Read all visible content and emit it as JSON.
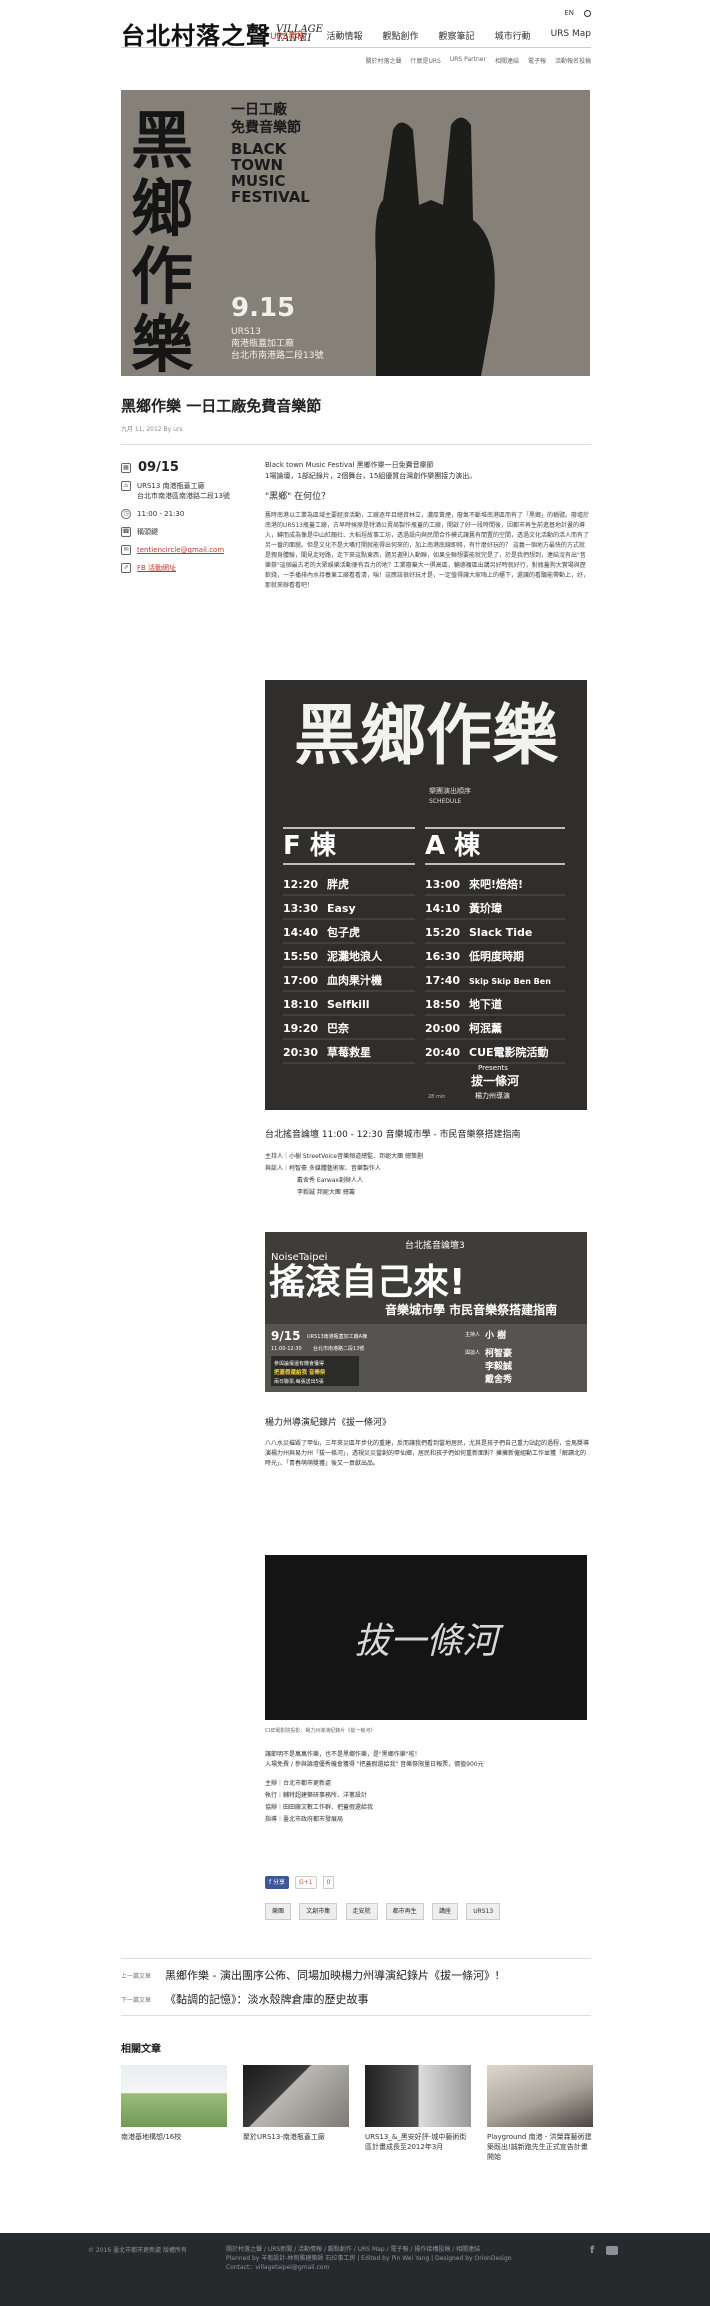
{
  "header": {
    "lang": "EN",
    "logo_zh": "台北村落之聲",
    "logo_en_1": "VILLAGE",
    "logo_en_2": "TAIPEI",
    "nav": [
      "URS新聞",
      "活動情報",
      "觀點創作",
      "觀察筆記",
      "城市行動",
      "URS Map"
    ],
    "subnav": [
      "關於村落之聲",
      "什麼是URS",
      "URS Partner",
      "相關連結",
      "電子報",
      "活動報名投稿"
    ]
  },
  "hero": {
    "line1": "一日工廠",
    "line2": "免費音樂節",
    "en1": "BLACK",
    "en2": "TOWN",
    "en3": "MUSIC",
    "en4": "FESTIVAL",
    "big": "黑鄉作樂",
    "date": "9.15",
    "place1": "URS13",
    "place2": "南港瓶蓋加工廠",
    "place3": "台北市南港路二段13號"
  },
  "article": {
    "title": "黑鄉作樂 一日工廠免費音樂節",
    "meta": "九月 11, 2012 By urs",
    "intro1": "Black town Music Festival 黑鄉作樂一日免費音樂節",
    "intro2": "1場論壇，1部紀錄片，2個舞台，15組優質台灣創作樂團接力演出。",
    "q": "\"黑鄉\" 在何位？",
    "body": "舊時南港以工業為區域主要經濟活動，工廠逐年且總資林立，濃厚黃煙，廢氣不斷堆南港區而有了「黑鄉」的稱號。廢墟於南港的URS13瓶蓋工廠，古早時候原是特酒公賣局製作瓶蓋的工廠，開啟了好一段時間後，因都市再生前進基地計畫的導入，轉而成為像是中山紅顏社、大稻埕故事工坊，透過設向與民間合作模式讓舊有閒置的空間，透過文化活動的活人而有了另一番的面貌。但是文化不是大嘴打開就能得出何來的，加上南港底線即將，有什麼好玩的？ 這義一個地方最快的方式就是親身體驗，聞見走短路，走下來這點東西，題另邀則入動聯，如果全聯想要能就完是了，於是我們想到，連結沒有出\"音樂祭\"這個最古老的大眾娛樂活動便有百力的地？工業廢棄大一俱高區，輔德複區出講另好時就好行，對瓶蓋狗大實場與歷軟錢，一手播排內水持養東工廠看看清，喘！這應該很好玩才是，一定值得讓大家嗨上的櫃下，還讓的看聽能帶動上，好，那就來辦看看吧！",
    "forum_title": "台北搖音論壇 11:00 - 12:30 音樂城市學 - 市民音樂祭搭建指南",
    "forum": [
      "主持人｜小樹 StreetVoice音樂頻道總監、邦妮大團 總策劃",
      "與談人｜柯智豪 多媒體藝術家、音樂製作人",
      "戴舍秀 Earwax創辦人人",
      "李毅誠 邦妮大團 總籌"
    ],
    "doc_title": "楊力州導演紀錄片《拔一條河》",
    "doc_body": "八八水災摧毀了甲仙，三年來災區年步化的重建，反而讓我們看到當地居民，尤其是孩子們自己重力站起的過程，金馬獎導演楊力州與易力州「拔一條河」，透視災災當創的甲仙鄉，居民和孩子們如何重新面對？擁擁新僱組動工作並獲「解讀北的時光」、「青春萌萌獎獲」後又一貢獻出品。",
    "caption": "CUE電影院投影：楊力州導演紀錄片《拔一條河》",
    "closing1": "讓節明不是萬萬作樂，也不是黑鄉作樂，是\"黑鄉作樂\"啦！",
    "closing2": "入場免費 / 參與論壇優秀機會獲得 \"把蓋假還給我\" 音樂祭限量日報票，價值900元",
    "credits": [
      "主辦｜台北市都市更新處",
      "執行｜輔特超建築研事務所、洋蔥設計",
      "協辦｜田田廠文數工作群、把蓋假還給我",
      "指導｜臺北市政府都市發展局"
    ],
    "share": "分享",
    "gplus": "G+1",
    "gcount": "0",
    "tags": [
      "樂團",
      "文創市集",
      "走安院",
      "都市再生",
      "講座",
      "URS13"
    ]
  },
  "schedule": {
    "title": "黑鄉作樂",
    "sub1": "樂團演出順序",
    "sub2": "SCHEDULE",
    "f": "F 棟",
    "a": "A 棟",
    "f_rows": [
      [
        "12:20",
        "胖虎"
      ],
      [
        "13:30",
        "Easy"
      ],
      [
        "14:40",
        "包子虎"
      ],
      [
        "15:50",
        "泥灘地浪人"
      ],
      [
        "17:00",
        "血肉果汁機"
      ],
      [
        "18:10",
        "Selfkill"
      ],
      [
        "19:20",
        "巴奈"
      ],
      [
        "20:30",
        "草莓救星"
      ]
    ],
    "a_rows": [
      [
        "13:00",
        "來吧!焙焙!"
      ],
      [
        "14:10",
        "黃玠瑋"
      ],
      [
        "15:20",
        "Slack Tide"
      ],
      [
        "16:30",
        "低明度時期"
      ],
      [
        "17:40",
        "Skip Skip Ben Ben"
      ],
      [
        "18:50",
        "地下道"
      ],
      [
        "20:00",
        "柯泯薰"
      ],
      [
        "20:40",
        "CUE電影院活動"
      ]
    ],
    "last1": "Presents",
    "last2": "拔一條河",
    "last3": "楊力州導演",
    "note": "28 min"
  },
  "noise": {
    "label": "NoiseTaipei",
    "head": "台北搖音論壇3",
    "big": "搖滾自己來!",
    "sub": "音樂城市學 市民音樂祭搭建指南",
    "date": "9/15",
    "date_note": "URS13南港瓶蓋加工廠A棟",
    "time": "11:00-12:30",
    "addr": "台北市南港路二段13號",
    "tag1": "參與論壇還有機會獲得",
    "tag2": "把蓋假還給我 音樂祭",
    "tag3": "兩日聯票,每張送出5張",
    "host": "主持人",
    "hostname": "小 樹",
    "panel": "與談人",
    "p1": "柯智豪",
    "p2": "李毅誠",
    "p3": "戴舍秀"
  },
  "docposter": {
    "text": "拔一條河"
  },
  "sidebar": {
    "date": "09/15",
    "venue1": "URS13 南港瓶蓋工廠",
    "venue2": "台北市南港區南港路二段13號",
    "time": "11:00 - 21:30",
    "link1": "稱頭鍵",
    "email": "tentiencircle@gmail.com",
    "fb": "FB 活動網址"
  },
  "postnav": {
    "prev_label": "上一篇文章",
    "prev": "黑鄉作樂 - 演出團序公佈、同場加映楊力州導演紀錄片《拔一條河》!",
    "next_label": "下一篇文章",
    "next": "《黏調的記憶》：淡水殼牌倉庫的歷史故事"
  },
  "related": {
    "title": "相關文章",
    "items": [
      "南港基地構想/16校",
      "聚於URS13-南港瓶蓋工廠",
      "URS13_&_黑安好評-城中藝術街區計畫成長至2012年3月",
      "Playground 南港 - 洪榮霖藝術建築既出!誠新跑先生正式宣告計畫開始"
    ]
  },
  "footer": {
    "copy": "© 2016 臺北市都市更新處 版權所有",
    "links": "關於村落之聲 / URS新聞 / 活動情報 / 觀點創作 / URS Map / 電子報 / 操作接構投稿 / 相關連結",
    "line2": "Planned by 羊衛設計-林明雅建築師 石拉事工房 | Edited by Pin Wei Yang | Designed by OrionDesign",
    "line3": "Contact：villagetaipei@gmail.com"
  }
}
